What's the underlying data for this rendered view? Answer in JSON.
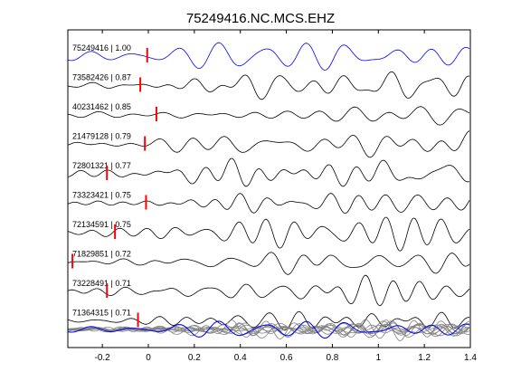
{
  "chart_data": {
    "type": "line",
    "title": "75249416.NC.MCS.EHZ",
    "xlabel": "",
    "ylabel": "",
    "xlim": [
      -0.35,
      1.4
    ],
    "x_ticks": [
      "-0.2",
      "0",
      "0.2",
      "0.4",
      "0.6",
      "0.8",
      "1",
      "1.2",
      "1.4"
    ],
    "x_tick_values": [
      -0.2,
      0,
      0.2,
      0.4,
      0.6,
      0.8,
      1,
      1.2,
      1.4
    ],
    "grid": false,
    "colors": {
      "reference": "#0000ff",
      "trace": "#000000",
      "stack": "#808080",
      "pick": "#ff0000"
    },
    "traces": [
      {
        "label": "75249416 | 1.00",
        "pick": -0.005,
        "reference": true
      },
      {
        "label": "73582426 | 0.87",
        "pick": -0.035
      },
      {
        "label": "40231462 | 0.85",
        "pick": 0.035
      },
      {
        "label": "21479128 | 0.79",
        "pick": -0.015
      },
      {
        "label": "72801321 | 0.77",
        "pick": -0.18
      },
      {
        "label": "73323421 | 0.75",
        "pick": -0.01
      },
      {
        "label": "72134591 | 0.75",
        "pick": -0.145
      },
      {
        "label": "71829851 | 0.72",
        "pick": -0.33
      },
      {
        "label": "73228491 | 0.71",
        "pick": -0.18
      },
      {
        "label": "71364315 | 0.71",
        "pick": -0.045
      }
    ]
  }
}
